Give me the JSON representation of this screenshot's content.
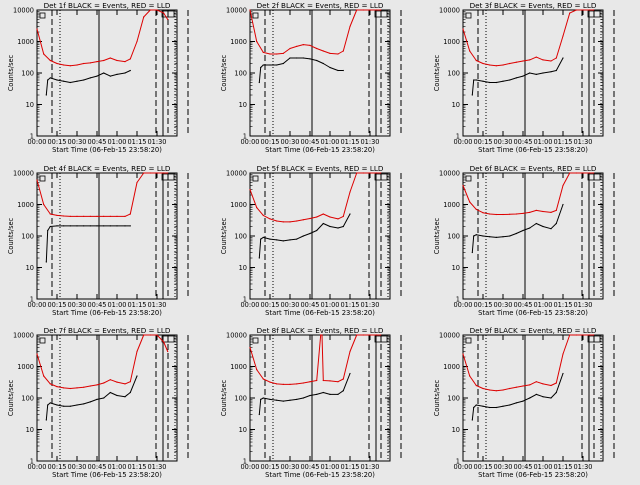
{
  "figure": {
    "x_axis_label": "Start Time (06-Feb-15 23:58:20)",
    "y_axis_label": "Counts/sec",
    "x_tick_labels": [
      "00:00",
      "00:15",
      "00:30",
      "00:45",
      "01:00",
      "01:15",
      "01:30"
    ],
    "y_tick_labels": [
      "1",
      "10",
      "100",
      "1000",
      "10000"
    ],
    "colors": {
      "events": "#000000",
      "lld": "#dd0000",
      "background": "#e8e8e8"
    }
  },
  "chart_data": [
    {
      "type": "line",
      "title": "Det 1f BLACK = Events, RED = LLD",
      "yscale": "log",
      "xlim": [
        0,
        105
      ],
      "ylim": [
        1,
        10000
      ],
      "x_tick_values": [
        0,
        15,
        30,
        45,
        60,
        75,
        90
      ],
      "series": [
        {
          "x": [
            7,
            8,
            10,
            15,
            20,
            25,
            30,
            35,
            40,
            45,
            50,
            55,
            60,
            66,
            70
          ],
          "values": [
            20,
            60,
            70,
            60,
            55,
            50,
            55,
            60,
            70,
            80,
            100,
            80,
            90,
            100,
            120
          ]
        },
        {
          "x": [
            0,
            5,
            10,
            15,
            20,
            25,
            30,
            35,
            40,
            45,
            50,
            55,
            60,
            66,
            70,
            75,
            80,
            85,
            90,
            95,
            98
          ],
          "values": [
            2500,
            400,
            250,
            200,
            180,
            170,
            180,
            200,
            210,
            230,
            250,
            300,
            250,
            230,
            280,
            1000,
            6000,
            10000,
            10000,
            8000,
            5000
          ]
        }
      ]
    },
    {
      "type": "line",
      "title": "Det 2f BLACK = Events, RED = LLD",
      "yscale": "log",
      "xlim": [
        0,
        105
      ],
      "ylim": [
        1,
        10000
      ],
      "x_tick_values": [
        0,
        15,
        30,
        45,
        60,
        75,
        90
      ],
      "series": [
        {
          "x": [
            7,
            8,
            10,
            15,
            20,
            25,
            30,
            35,
            40,
            45,
            50,
            55,
            60,
            66,
            70
          ],
          "values": [
            50,
            150,
            180,
            180,
            180,
            200,
            300,
            300,
            300,
            280,
            250,
            200,
            150,
            120,
            120
          ]
        },
        {
          "x": [
            0,
            5,
            10,
            15,
            20,
            25,
            30,
            35,
            40,
            45,
            50,
            55,
            60,
            66,
            70,
            75,
            80,
            85,
            90,
            95,
            98
          ],
          "values": [
            10000,
            1000,
            450,
            400,
            400,
            420,
            600,
            700,
            800,
            750,
            600,
            500,
            420,
            400,
            500,
            3000,
            10000,
            10000,
            10000,
            10000,
            10000
          ]
        }
      ]
    },
    {
      "type": "line",
      "title": "Det 3f BLACK = Events, RED = LLD",
      "yscale": "log",
      "xlim": [
        0,
        105
      ],
      "ylim": [
        1,
        10000
      ],
      "x_tick_values": [
        0,
        15,
        30,
        45,
        60,
        75,
        90
      ],
      "series": [
        {
          "x": [
            7,
            8,
            10,
            15,
            20,
            25,
            30,
            35,
            40,
            45,
            50,
            55,
            60,
            66,
            70,
            75
          ],
          "values": [
            20,
            60,
            60,
            55,
            50,
            50,
            55,
            60,
            70,
            80,
            100,
            90,
            100,
            110,
            120,
            300
          ]
        },
        {
          "x": [
            0,
            5,
            10,
            15,
            20,
            25,
            30,
            35,
            40,
            45,
            50,
            55,
            60,
            66,
            70,
            75,
            80,
            85,
            90,
            95,
            98
          ],
          "values": [
            2500,
            500,
            250,
            200,
            180,
            170,
            180,
            200,
            220,
            240,
            260,
            320,
            260,
            240,
            300,
            1500,
            8000,
            10000,
            10000,
            10000,
            10000
          ]
        }
      ]
    },
    {
      "type": "line",
      "title": "Det 4f BLACK = Events, RED = LLD",
      "yscale": "log",
      "xlim": [
        0,
        105
      ],
      "ylim": [
        1,
        10000
      ],
      "x_tick_values": [
        0,
        15,
        30,
        45,
        60,
        75,
        90
      ],
      "series": [
        {
          "x": [
            7,
            8,
            10,
            15,
            20,
            25,
            30,
            35,
            40,
            45,
            50,
            55,
            60,
            66,
            70
          ],
          "values": [
            15,
            150,
            200,
            210,
            210,
            210,
            210,
            210,
            210,
            210,
            210,
            210,
            210,
            210,
            210
          ]
        },
        {
          "x": [
            0,
            5,
            10,
            15,
            20,
            25,
            30,
            35,
            40,
            45,
            50,
            55,
            60,
            66,
            70,
            75,
            80,
            85,
            90,
            95,
            98
          ],
          "values": [
            6000,
            1000,
            500,
            450,
            430,
            420,
            420,
            420,
            420,
            420,
            420,
            420,
            420,
            420,
            500,
            5000,
            10000,
            10000,
            10000,
            10000,
            10000
          ]
        }
      ]
    },
    {
      "type": "line",
      "title": "Det 5f BLACK = Events, RED = LLD",
      "yscale": "log",
      "xlim": [
        0,
        105
      ],
      "ylim": [
        1,
        10000
      ],
      "x_tick_values": [
        0,
        15,
        30,
        45,
        60,
        75,
        90
      ],
      "series": [
        {
          "x": [
            7,
            8,
            10,
            15,
            20,
            25,
            30,
            35,
            40,
            45,
            50,
            55,
            60,
            66,
            70,
            75
          ],
          "values": [
            20,
            80,
            90,
            80,
            75,
            70,
            75,
            80,
            100,
            120,
            150,
            250,
            200,
            180,
            200,
            500
          ]
        },
        {
          "x": [
            0,
            5,
            10,
            15,
            20,
            25,
            30,
            35,
            40,
            45,
            50,
            55,
            60,
            66,
            70,
            75,
            80,
            85,
            90,
            95,
            98
          ],
          "values": [
            3000,
            800,
            450,
            350,
            300,
            280,
            280,
            300,
            330,
            360,
            400,
            500,
            400,
            350,
            420,
            2500,
            10000,
            10000,
            10000,
            10000,
            10000
          ]
        }
      ]
    },
    {
      "type": "line",
      "title": "Det 6f BLACK = Events, RED = LLD",
      "yscale": "log",
      "xlim": [
        0,
        105
      ],
      "ylim": [
        1,
        10000
      ],
      "x_tick_values": [
        0,
        15,
        30,
        45,
        60,
        75,
        90
      ],
      "series": [
        {
          "x": [
            7,
            8,
            10,
            15,
            20,
            25,
            30,
            35,
            40,
            45,
            50,
            55,
            60,
            66,
            70,
            75
          ],
          "values": [
            30,
            100,
            110,
            100,
            95,
            90,
            95,
            100,
            120,
            150,
            180,
            250,
            200,
            170,
            250,
            1000
          ]
        },
        {
          "x": [
            0,
            5,
            10,
            15,
            20,
            25,
            30,
            35,
            40,
            45,
            50,
            55,
            60,
            66,
            70,
            75,
            80,
            85,
            90,
            95,
            98
          ],
          "values": [
            4000,
            1200,
            700,
            550,
            500,
            480,
            480,
            490,
            500,
            520,
            560,
            650,
            600,
            560,
            650,
            4000,
            10000,
            10000,
            10000,
            10000,
            10000
          ]
        }
      ]
    },
    {
      "type": "line",
      "title": "Det 7f BLACK = Events, RED = LLD",
      "yscale": "log",
      "xlim": [
        0,
        105
      ],
      "ylim": [
        1,
        10000
      ],
      "x_tick_values": [
        0,
        15,
        30,
        45,
        60,
        75,
        90
      ],
      "series": [
        {
          "x": [
            7,
            8,
            10,
            15,
            20,
            25,
            30,
            35,
            40,
            45,
            50,
            55,
            60,
            66,
            70,
            75
          ],
          "values": [
            20,
            60,
            70,
            60,
            55,
            55,
            60,
            65,
            75,
            90,
            100,
            150,
            120,
            110,
            150,
            500
          ]
        },
        {
          "x": [
            0,
            5,
            10,
            15,
            20,
            25,
            30,
            35,
            40,
            45,
            50,
            55,
            60,
            66,
            70,
            75,
            80,
            85,
            90,
            95,
            98
          ],
          "values": [
            2500,
            500,
            280,
            230,
            210,
            200,
            210,
            220,
            240,
            260,
            300,
            380,
            320,
            280,
            330,
            3000,
            10000,
            10000,
            10000,
            6000,
            3000
          ]
        }
      ]
    },
    {
      "type": "line",
      "title": "Det 8f BLACK = Events, RED = LLD",
      "yscale": "log",
      "xlim": [
        0,
        105
      ],
      "ylim": [
        1,
        10000
      ],
      "x_tick_values": [
        0,
        15,
        30,
        45,
        60,
        75,
        90
      ],
      "series": [
        {
          "x": [
            7,
            8,
            10,
            15,
            20,
            25,
            30,
            35,
            40,
            45,
            50,
            55,
            60,
            66,
            70,
            75
          ],
          "values": [
            30,
            90,
            100,
            90,
            85,
            80,
            85,
            90,
            100,
            120,
            130,
            150,
            130,
            130,
            170,
            600
          ]
        },
        {
          "x": [
            0,
            5,
            10,
            15,
            20,
            25,
            30,
            35,
            40,
            45,
            50,
            53,
            54,
            55,
            60,
            66,
            70,
            75,
            80,
            85,
            90,
            95,
            98
          ],
          "values": [
            4000,
            800,
            400,
            320,
            280,
            270,
            270,
            280,
            300,
            330,
            360,
            10000,
            10000,
            360,
            350,
            330,
            400,
            3000,
            10000,
            10000,
            10000,
            10000,
            10000
          ]
        }
      ]
    },
    {
      "type": "line",
      "title": "Det 9f BLACK = Events, RED = LLD",
      "yscale": "log",
      "xlim": [
        0,
        105
      ],
      "ylim": [
        1,
        10000
      ],
      "x_tick_values": [
        0,
        15,
        30,
        45,
        60,
        75,
        90
      ],
      "series": [
        {
          "x": [
            7,
            8,
            10,
            15,
            20,
            25,
            30,
            35,
            40,
            45,
            50,
            55,
            60,
            66,
            70,
            75
          ],
          "values": [
            20,
            50,
            60,
            55,
            50,
            50,
            55,
            60,
            70,
            80,
            100,
            130,
            110,
            100,
            150,
            600
          ]
        },
        {
          "x": [
            0,
            5,
            10,
            15,
            20,
            25,
            30,
            35,
            40,
            45,
            50,
            55,
            60,
            66,
            70,
            75,
            80,
            85,
            90,
            95,
            98
          ],
          "values": [
            2500,
            500,
            250,
            200,
            180,
            170,
            180,
            200,
            220,
            240,
            260,
            330,
            280,
            250,
            300,
            2500,
            10000,
            10000,
            10000,
            10000,
            10000
          ]
        }
      ]
    }
  ]
}
